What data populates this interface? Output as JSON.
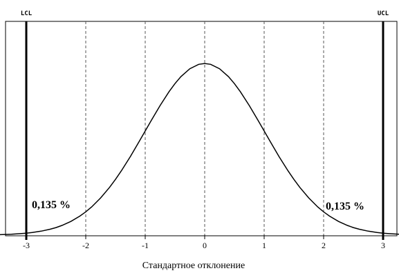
{
  "chart_data": {
    "type": "line",
    "title": "",
    "xlabel": "Стандартное отклонение",
    "ylabel": "",
    "xlim": [
      -3.55,
      3.3
    ],
    "x_ticks": [
      -3,
      -2,
      -1,
      0,
      1,
      2,
      3
    ],
    "x_tick_labels": [
      "-3",
      "-2",
      "-1",
      "0",
      "1",
      "2",
      "3"
    ],
    "grid": "vertical dashed",
    "series": [
      {
        "curve": "standard normal density",
        "x": [
          -3.55,
          -3.4,
          -3.25,
          -3.1,
          -3.0,
          -2.9,
          -2.75,
          -2.6,
          -2.5,
          -2.4,
          -2.25,
          -2.1,
          -2.0,
          -1.9,
          -1.75,
          -1.6,
          -1.5,
          -1.4,
          -1.25,
          -1.1,
          -1.0,
          -0.9,
          -0.75,
          -0.6,
          -0.5,
          -0.4,
          -0.25,
          -0.1,
          0.0,
          0.1,
          0.25,
          0.4,
          0.5,
          0.6,
          0.75,
          0.9,
          1.0,
          1.1,
          1.25,
          1.4,
          1.5,
          1.6,
          1.75,
          1.9,
          2.0,
          2.1,
          2.25,
          2.4,
          2.5,
          2.6,
          2.75,
          2.9,
          3.0,
          3.1,
          3.3
        ],
        "y": [
          0.0007,
          0.0012,
          0.002,
          0.0033,
          0.0044,
          0.006,
          0.0091,
          0.0136,
          0.0175,
          0.0224,
          0.0317,
          0.044,
          0.054,
          0.0656,
          0.0863,
          0.1109,
          0.1295,
          0.1497,
          0.1826,
          0.2179,
          0.242,
          0.2661,
          0.3011,
          0.3332,
          0.3521,
          0.3683,
          0.3867,
          0.397,
          0.3989,
          0.397,
          0.3867,
          0.3683,
          0.3521,
          0.3332,
          0.3011,
          0.2661,
          0.242,
          0.2179,
          0.1826,
          0.1497,
          0.1295,
          0.1109,
          0.0863,
          0.0656,
          0.054,
          0.044,
          0.0317,
          0.0224,
          0.0175,
          0.0136,
          0.0091,
          0.006,
          0.0044,
          0.0033,
          0.0017
        ]
      }
    ],
    "limits": [
      {
        "name": "LCL",
        "x": -3
      },
      {
        "name": "UCL",
        "x": 3
      }
    ],
    "annotations": [
      {
        "text": "0,135 %",
        "side": "left"
      },
      {
        "text": "0,135 %",
        "side": "right"
      }
    ]
  }
}
